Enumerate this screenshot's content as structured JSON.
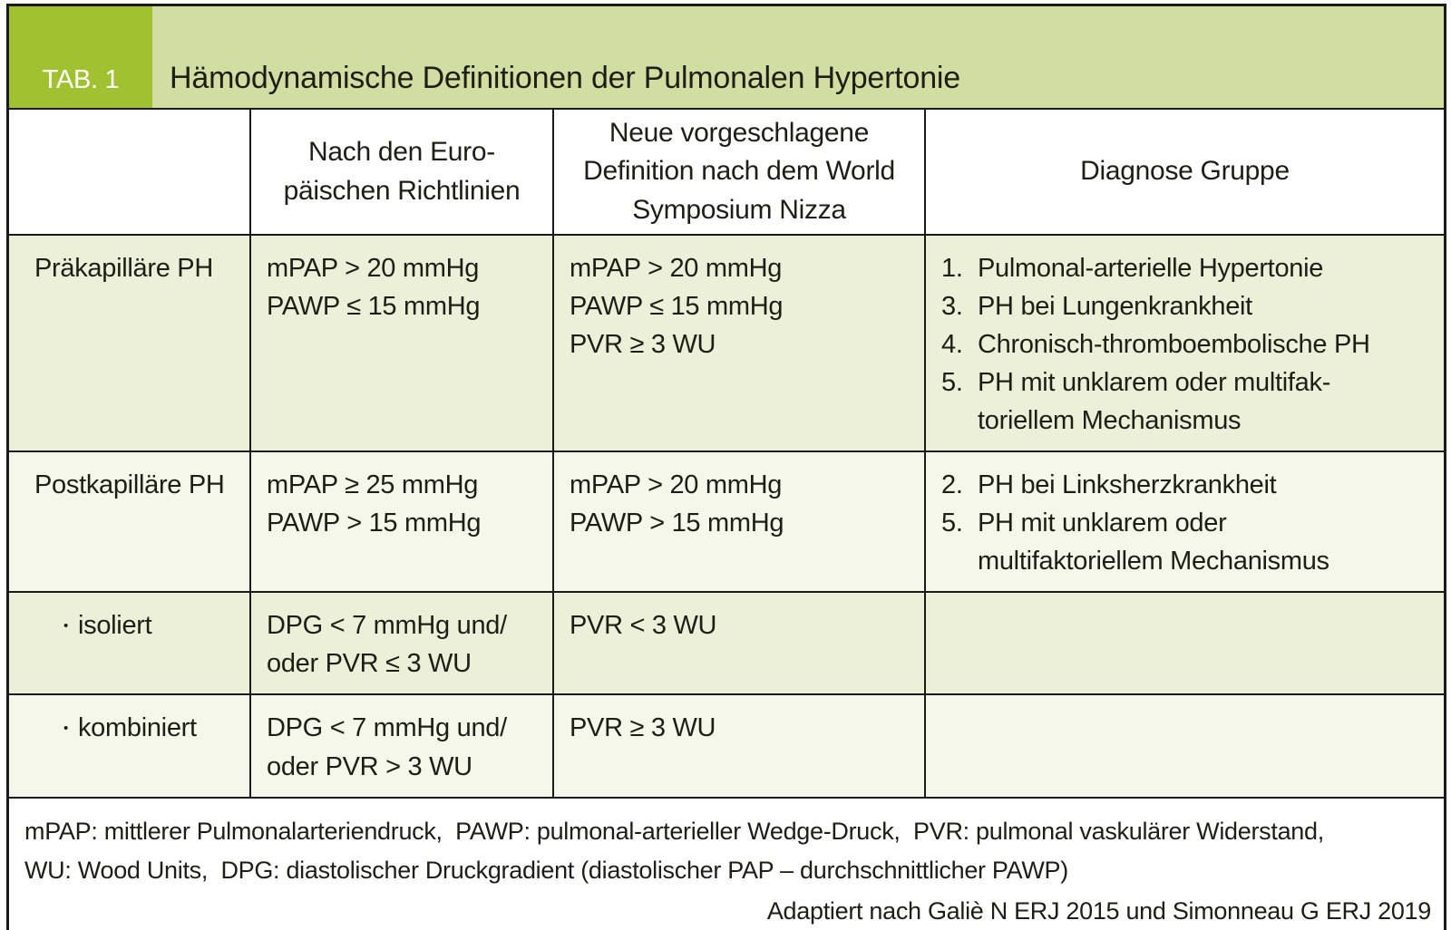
{
  "colors": {
    "tab_box": "#a2c131",
    "title_strip": "#d2dda2",
    "row_green": "#edf0d8",
    "row_light": "#f6f7eb",
    "border": "#1a1a1a"
  },
  "title_band": {
    "tab_label": "TAB. 1",
    "title": "Hämodynamische Definitionen der Pulmonalen Hypertonie"
  },
  "table": {
    "col_headers": {
      "empty": "",
      "euro": [
        "Nach den Euro-",
        "päischen Richtlinien"
      ],
      "nizza": [
        "Neue vorgeschlagene",
        "Definition nach dem World",
        "Symposium Nizza"
      ],
      "diagnose": [
        "Diagnose Gruppe"
      ]
    },
    "rows": [
      {
        "label": {
          "bullet": "",
          "text": "Präkapilläre PH"
        },
        "euro": [
          "mPAP > 20 mmHg",
          "PAWP ≤ 15 mmHg"
        ],
        "nizza": [
          "mPAP > 20 mmHg",
          "PAWP ≤ 15 mmHg",
          "PVR ≥ 3 WU"
        ],
        "diagnose": [
          {
            "num": "1.",
            "text": "Pulmonal-arterielle Hypertonie"
          },
          {
            "num": "3.",
            "text": "PH bei Lungenkrankheit"
          },
          {
            "num": "4.",
            "text": "Chronisch-thromboembolische PH"
          },
          {
            "num": "5.",
            "text": "PH mit unklarem oder multifak-\ntoriellem Mechanismus"
          }
        ]
      },
      {
        "label": {
          "bullet": "",
          "text": "Postkapilläre PH"
        },
        "euro": [
          "mPAP ≥ 25 mmHg",
          "PAWP > 15 mmHg"
        ],
        "nizza": [
          "mPAP > 20 mmHg",
          "PAWP > 15 mmHg"
        ],
        "diagnose": [
          {
            "num": "2.",
            "text": "PH bei Linksherzkrankheit"
          },
          {
            "num": "5.",
            "text": "PH mit unklarem oder\nmultifaktoriellem Mechanismus"
          }
        ]
      },
      {
        "label": {
          "bullet": "•",
          "text": "isoliert"
        },
        "euro": [
          "DPG < 7 mmHg und/",
          "oder PVR ≤ 3 WU"
        ],
        "nizza": [
          "PVR < 3 WU"
        ],
        "diagnose": []
      },
      {
        "label": {
          "bullet": "•",
          "text": "kombiniert"
        },
        "euro": [
          "DPG < 7 mmHg und/",
          "oder PVR > 3 WU"
        ],
        "nizza": [
          "PVR ≥ 3 WU"
        ],
        "diagnose": []
      }
    ]
  },
  "footnote": {
    "abbreviations": [
      "mPAP: mittlerer Pulmonalarteriendruck,  PAWP: pulmonal-arterieller Wedge-Druck,  PVR: pulmonal vaskulärer Widerstand,",
      "WU: Wood Units,  DPG: diastolischer Druckgradient (diastolischer PAP – durchschnittlicher PAWP)"
    ],
    "source": "Adaptiert nach Galiè N ERJ 2015 und Simonneau G ERJ 2019"
  }
}
